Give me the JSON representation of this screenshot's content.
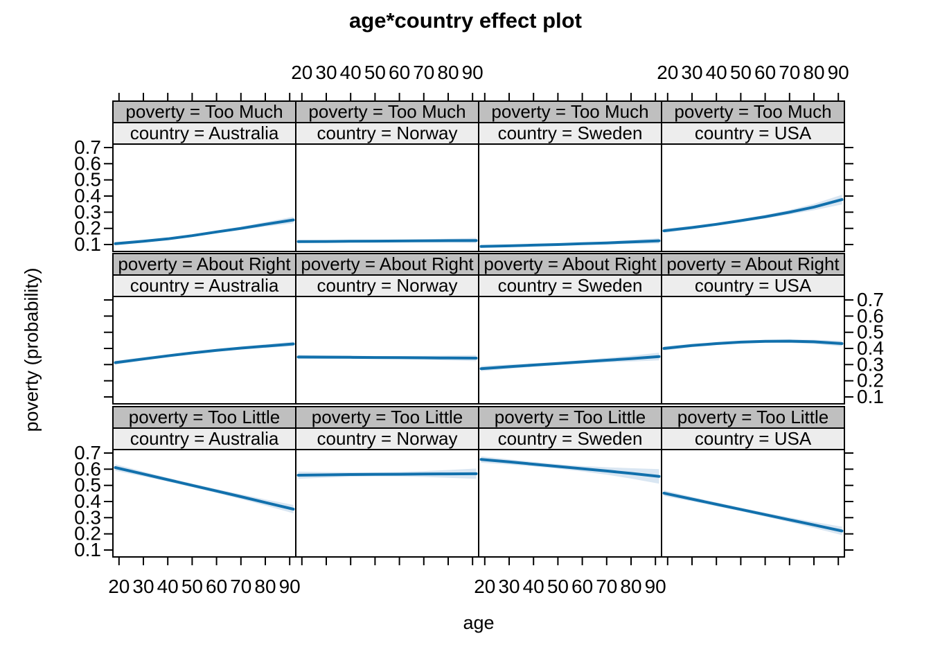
{
  "title": "age*country effect plot",
  "xlabel": "age",
  "ylabel": "poverty (probability)",
  "colors": {
    "line": "#1170ac",
    "band": "#d9e6f2",
    "strip_poverty_bg": "#bfbfbf",
    "strip_country_bg": "#ededed",
    "border": "#000000"
  },
  "chart_data": {
    "type": "line",
    "title": "age*country effect plot",
    "xlabel": "age",
    "ylabel": "poverty (probability)",
    "legend_position": "none",
    "grid": "off",
    "xlim": [
      17.5,
      92.5
    ],
    "ylim": [
      0.057,
      0.722
    ],
    "x_ticks": [
      {
        "v": 20,
        "label": "20"
      },
      {
        "v": 30,
        "label": "30"
      },
      {
        "v": 40,
        "label": "40"
      },
      {
        "v": 50,
        "label": "50"
      },
      {
        "v": 60,
        "label": "60"
      },
      {
        "v": 70,
        "label": "70"
      },
      {
        "v": 80,
        "label": "80"
      },
      {
        "v": 90,
        "label": "90"
      }
    ],
    "y_ticks": [
      {
        "v": 0.1,
        "label": "0.1"
      },
      {
        "v": 0.2,
        "label": "0.2"
      },
      {
        "v": 0.3,
        "label": "0.3"
      },
      {
        "v": 0.4,
        "label": "0.4"
      },
      {
        "v": 0.5,
        "label": "0.5"
      },
      {
        "v": 0.6,
        "label": "0.6"
      },
      {
        "v": 0.7,
        "label": "0.7"
      }
    ],
    "facet_rows": [
      {
        "value": "Too Much",
        "strip_label": "poverty = Too Much"
      },
      {
        "value": "About Right",
        "strip_label": "poverty = About Right"
      },
      {
        "value": "Too Little",
        "strip_label": "poverty = Too Little"
      }
    ],
    "facet_cols": [
      {
        "value": "Australia",
        "strip_label": "country = Australia"
      },
      {
        "value": "Norway",
        "strip_label": "country = Norway"
      },
      {
        "value": "Sweden",
        "strip_label": "country = Sweden"
      },
      {
        "value": "USA",
        "strip_label": "country = USA"
      }
    ],
    "ages": [
      18.5,
      30,
      40,
      50,
      60,
      70,
      80,
      91.5
    ],
    "panels": [
      [
        {
          "row": "Too Much",
          "col": "Australia",
          "fit": [
            0.105,
            0.12,
            0.135,
            0.155,
            0.178,
            0.2,
            0.225,
            0.252
          ],
          "half_width": [
            0.01,
            0.008,
            0.007,
            0.007,
            0.008,
            0.01,
            0.014,
            0.02
          ]
        },
        {
          "row": "Too Much",
          "col": "Norway",
          "fit": [
            0.118,
            0.119,
            0.12,
            0.121,
            0.122,
            0.123,
            0.124,
            0.125
          ],
          "half_width": [
            0.01,
            0.008,
            0.007,
            0.006,
            0.007,
            0.009,
            0.012,
            0.016
          ]
        },
        {
          "row": "Too Much",
          "col": "Sweden",
          "fit": [
            0.088,
            0.092,
            0.096,
            0.1,
            0.105,
            0.11,
            0.116,
            0.123
          ],
          "half_width": [
            0.008,
            0.007,
            0.006,
            0.006,
            0.007,
            0.009,
            0.012,
            0.017
          ]
        },
        {
          "row": "Too Much",
          "col": "USA",
          "fit": [
            0.185,
            0.205,
            0.225,
            0.248,
            0.272,
            0.3,
            0.332,
            0.378
          ],
          "half_width": [
            0.013,
            0.01,
            0.009,
            0.009,
            0.011,
            0.014,
            0.02,
            0.03
          ]
        }
      ],
      [
        {
          "row": "About Right",
          "col": "Australia",
          "fit": [
            0.312,
            0.335,
            0.354,
            0.372,
            0.388,
            0.402,
            0.414,
            0.428
          ],
          "half_width": [
            0.012,
            0.01,
            0.009,
            0.008,
            0.008,
            0.009,
            0.011,
            0.014
          ]
        },
        {
          "row": "About Right",
          "col": "Norway",
          "fit": [
            0.347,
            0.346,
            0.345,
            0.344,
            0.343,
            0.342,
            0.341,
            0.34
          ],
          "half_width": [
            0.013,
            0.011,
            0.01,
            0.009,
            0.01,
            0.012,
            0.015,
            0.019
          ]
        },
        {
          "row": "About Right",
          "col": "Sweden",
          "fit": [
            0.275,
            0.287,
            0.297,
            0.307,
            0.317,
            0.327,
            0.337,
            0.35
          ],
          "half_width": [
            0.016,
            0.013,
            0.011,
            0.01,
            0.011,
            0.014,
            0.018,
            0.024
          ]
        },
        {
          "row": "About Right",
          "col": "USA",
          "fit": [
            0.4,
            0.418,
            0.43,
            0.439,
            0.444,
            0.445,
            0.441,
            0.43
          ],
          "half_width": [
            0.013,
            0.01,
            0.009,
            0.008,
            0.009,
            0.011,
            0.013,
            0.017
          ]
        }
      ],
      [
        {
          "row": "Too Little",
          "col": "Australia",
          "fit": [
            0.61,
            0.57,
            0.535,
            0.5,
            0.465,
            0.43,
            0.394,
            0.353
          ],
          "half_width": [
            0.02,
            0.015,
            0.012,
            0.011,
            0.012,
            0.015,
            0.019,
            0.026
          ]
        },
        {
          "row": "Too Little",
          "col": "Norway",
          "fit": [
            0.563,
            0.565,
            0.567,
            0.568,
            0.569,
            0.57,
            0.571,
            0.572
          ],
          "half_width": [
            0.022,
            0.017,
            0.014,
            0.013,
            0.014,
            0.018,
            0.024,
            0.032
          ]
        },
        {
          "row": "Too Little",
          "col": "Sweden",
          "fit": [
            0.66,
            0.645,
            0.631,
            0.617,
            0.603,
            0.589,
            0.574,
            0.555
          ],
          "half_width": [
            0.02,
            0.016,
            0.014,
            0.014,
            0.017,
            0.023,
            0.032,
            0.045
          ]
        },
        {
          "row": "Too Little",
          "col": "USA",
          "fit": [
            0.452,
            0.415,
            0.383,
            0.351,
            0.319,
            0.287,
            0.255,
            0.218
          ],
          "half_width": [
            0.018,
            0.014,
            0.012,
            0.011,
            0.012,
            0.015,
            0.019,
            0.026
          ]
        }
      ]
    ]
  }
}
